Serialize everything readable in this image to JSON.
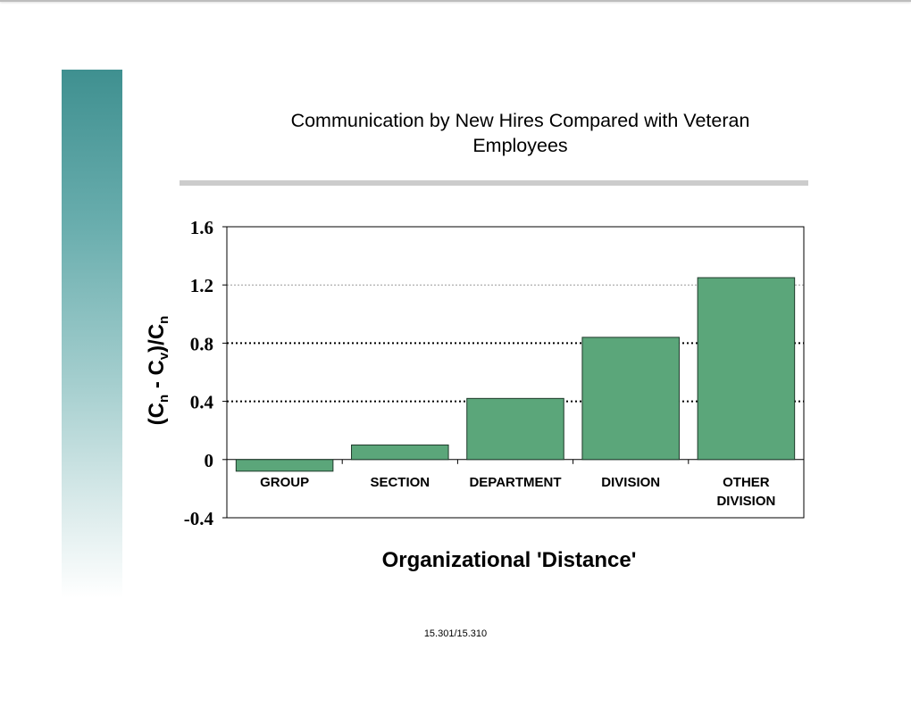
{
  "footer": "15.301/15.310",
  "colors": {
    "bar_fill": "#5ba67a",
    "bar_stroke": "#1e3a2a",
    "band_top": "#3f9090"
  },
  "chart_data": {
    "type": "bar",
    "title": "Communication by New Hires Compared with Veteran Employees",
    "title_lines": [
      "Communication by New Hires Compared with Veteran",
      "Employees"
    ],
    "xlabel": "Organizational 'Distance'",
    "ylabel": {
      "text": "(C",
      "sub1": "n",
      "mid": " - C",
      "sub2": "v",
      "tail": ")/C",
      "sub3": "n"
    },
    "categories": [
      "GROUP",
      "SECTION",
      "DEPARTMENT",
      "DIVISION",
      "OTHER DIVISION"
    ],
    "category_lines": [
      [
        "GROUP"
      ],
      [
        "SECTION"
      ],
      [
        "DEPARTMENT"
      ],
      [
        "DIVISION"
      ],
      [
        "OTHER",
        "DIVISION"
      ]
    ],
    "values": [
      -0.08,
      0.1,
      0.42,
      0.84,
      1.25
    ],
    "ylim": [
      -0.4,
      1.6
    ],
    "yticks": [
      1.6,
      1.2,
      0.8,
      0.4,
      0,
      -0.4
    ],
    "ytick_labels": [
      "1.6",
      "1.2",
      "0.8",
      "0.4",
      "0",
      "-0.4"
    ],
    "grid": true,
    "legend": "none"
  }
}
